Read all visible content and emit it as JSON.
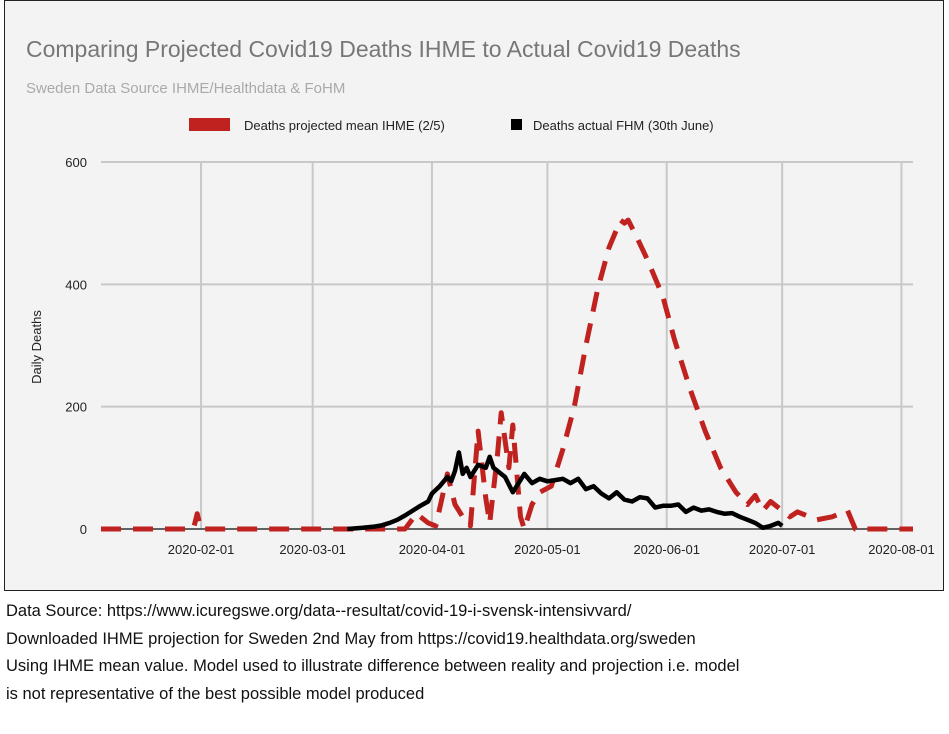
{
  "chart_data": {
    "type": "line",
    "title": "Comparing Projected Covid19 Deaths IHME to Actual Covid19 Deaths",
    "subtitle": "Sweden Data Source IHME/Healthdata & FoHM",
    "xlabel": "",
    "ylabel": "Daily Deaths",
    "ylim": [
      0,
      600
    ],
    "xlim": [
      "2020-01-06",
      "2020-08-04"
    ],
    "yticks": [
      "0",
      "200",
      "400",
      "600"
    ],
    "xticks": [
      "2020-02-01",
      "2020-03-01",
      "2020-04-01",
      "2020-05-01",
      "2020-06-01",
      "2020-07-01",
      "2020-08-01"
    ],
    "grid": true,
    "legend_position": "top",
    "series": [
      {
        "name": "Deaths projected mean IHME (2/5)",
        "color": "#c0231f",
        "style": "dashed",
        "points": [
          [
            "2020-01-06",
            0
          ],
          [
            "2020-01-30",
            0
          ],
          [
            "2020-01-31",
            25
          ],
          [
            "2020-02-01",
            0
          ],
          [
            "2020-03-25",
            0
          ],
          [
            "2020-03-28",
            25
          ],
          [
            "2020-03-31",
            10
          ],
          [
            "2020-04-02",
            5
          ],
          [
            "2020-04-05",
            90
          ],
          [
            "2020-04-07",
            40
          ],
          [
            "2020-04-09",
            20
          ],
          [
            "2020-04-11",
            5
          ],
          [
            "2020-04-13",
            160
          ],
          [
            "2020-04-15",
            50
          ],
          [
            "2020-04-16",
            10
          ],
          [
            "2020-04-18",
            120
          ],
          [
            "2020-04-19",
            190
          ],
          [
            "2020-04-21",
            100
          ],
          [
            "2020-04-22",
            170
          ],
          [
            "2020-04-24",
            20
          ],
          [
            "2020-04-25",
            0
          ],
          [
            "2020-04-27",
            40
          ],
          [
            "2020-04-29",
            60
          ],
          [
            "2020-05-02",
            70
          ],
          [
            "2020-05-05",
            130
          ],
          [
            "2020-05-08",
            200
          ],
          [
            "2020-05-11",
            300
          ],
          [
            "2020-05-14",
            390
          ],
          [
            "2020-05-17",
            460
          ],
          [
            "2020-05-20",
            505
          ],
          [
            "2020-05-21",
            500
          ],
          [
            "2020-05-22",
            505
          ],
          [
            "2020-05-24",
            480
          ],
          [
            "2020-05-27",
            440
          ],
          [
            "2020-05-31",
            380
          ],
          [
            "2020-06-03",
            310
          ],
          [
            "2020-06-07",
            230
          ],
          [
            "2020-06-11",
            160
          ],
          [
            "2020-06-15",
            100
          ],
          [
            "2020-06-19",
            60
          ],
          [
            "2020-06-22",
            40
          ],
          [
            "2020-06-24",
            55
          ],
          [
            "2020-06-26",
            30
          ],
          [
            "2020-06-28",
            45
          ],
          [
            "2020-07-01",
            30
          ],
          [
            "2020-07-03",
            20
          ],
          [
            "2020-07-05",
            28
          ],
          [
            "2020-07-10",
            15
          ],
          [
            "2020-07-14",
            20
          ],
          [
            "2020-07-18",
            30
          ],
          [
            "2020-07-20",
            0
          ],
          [
            "2020-08-04",
            0
          ]
        ]
      },
      {
        "name": "Deaths actual FHM (30th June)",
        "color": "#000000",
        "style": "solid",
        "points": [
          [
            "2020-03-10",
            0
          ],
          [
            "2020-03-14",
            2
          ],
          [
            "2020-03-17",
            4
          ],
          [
            "2020-03-19",
            6
          ],
          [
            "2020-03-21",
            10
          ],
          [
            "2020-03-23",
            15
          ],
          [
            "2020-03-25",
            22
          ],
          [
            "2020-03-27",
            30
          ],
          [
            "2020-03-29",
            38
          ],
          [
            "2020-03-31",
            45
          ],
          [
            "2020-04-01",
            58
          ],
          [
            "2020-04-03",
            70
          ],
          [
            "2020-04-05",
            85
          ],
          [
            "2020-04-06",
            78
          ],
          [
            "2020-04-07",
            95
          ],
          [
            "2020-04-08",
            125
          ],
          [
            "2020-04-09",
            90
          ],
          [
            "2020-04-10",
            100
          ],
          [
            "2020-04-11",
            85
          ],
          [
            "2020-04-13",
            105
          ],
          [
            "2020-04-15",
            100
          ],
          [
            "2020-04-16",
            118
          ],
          [
            "2020-04-17",
            100
          ],
          [
            "2020-04-18",
            95
          ],
          [
            "2020-04-20",
            85
          ],
          [
            "2020-04-22",
            60
          ],
          [
            "2020-04-24",
            80
          ],
          [
            "2020-04-25",
            90
          ],
          [
            "2020-04-27",
            75
          ],
          [
            "2020-04-29",
            82
          ],
          [
            "2020-05-01",
            78
          ],
          [
            "2020-05-03",
            80
          ],
          [
            "2020-05-05",
            82
          ],
          [
            "2020-05-07",
            75
          ],
          [
            "2020-05-09",
            82
          ],
          [
            "2020-05-11",
            65
          ],
          [
            "2020-05-13",
            70
          ],
          [
            "2020-05-15",
            58
          ],
          [
            "2020-05-17",
            50
          ],
          [
            "2020-05-19",
            60
          ],
          [
            "2020-05-21",
            48
          ],
          [
            "2020-05-23",
            45
          ],
          [
            "2020-05-25",
            52
          ],
          [
            "2020-05-27",
            50
          ],
          [
            "2020-05-29",
            35
          ],
          [
            "2020-05-31",
            38
          ],
          [
            "2020-06-02",
            38
          ],
          [
            "2020-06-04",
            40
          ],
          [
            "2020-06-06",
            28
          ],
          [
            "2020-06-08",
            35
          ],
          [
            "2020-06-10",
            30
          ],
          [
            "2020-06-12",
            32
          ],
          [
            "2020-06-14",
            28
          ],
          [
            "2020-06-16",
            25
          ],
          [
            "2020-06-18",
            26
          ],
          [
            "2020-06-20",
            20
          ],
          [
            "2020-06-22",
            15
          ],
          [
            "2020-06-24",
            10
          ],
          [
            "2020-06-26",
            2
          ],
          [
            "2020-06-28",
            5
          ],
          [
            "2020-06-30",
            10
          ],
          [
            "2020-07-01",
            5
          ]
        ]
      }
    ]
  },
  "notes": [
    "Data Source: https://www.icuregswe.org/data--resultat/covid-19-i-svensk-intensivvard/",
    "Downloaded IHME projection for Sweden 2nd May from https://covid19.healthdata.org/sweden",
    "Using IHME mean value. Model used to illustrate difference between reality and projection i.e. model",
    "is not representative of the best possible model produced"
  ]
}
